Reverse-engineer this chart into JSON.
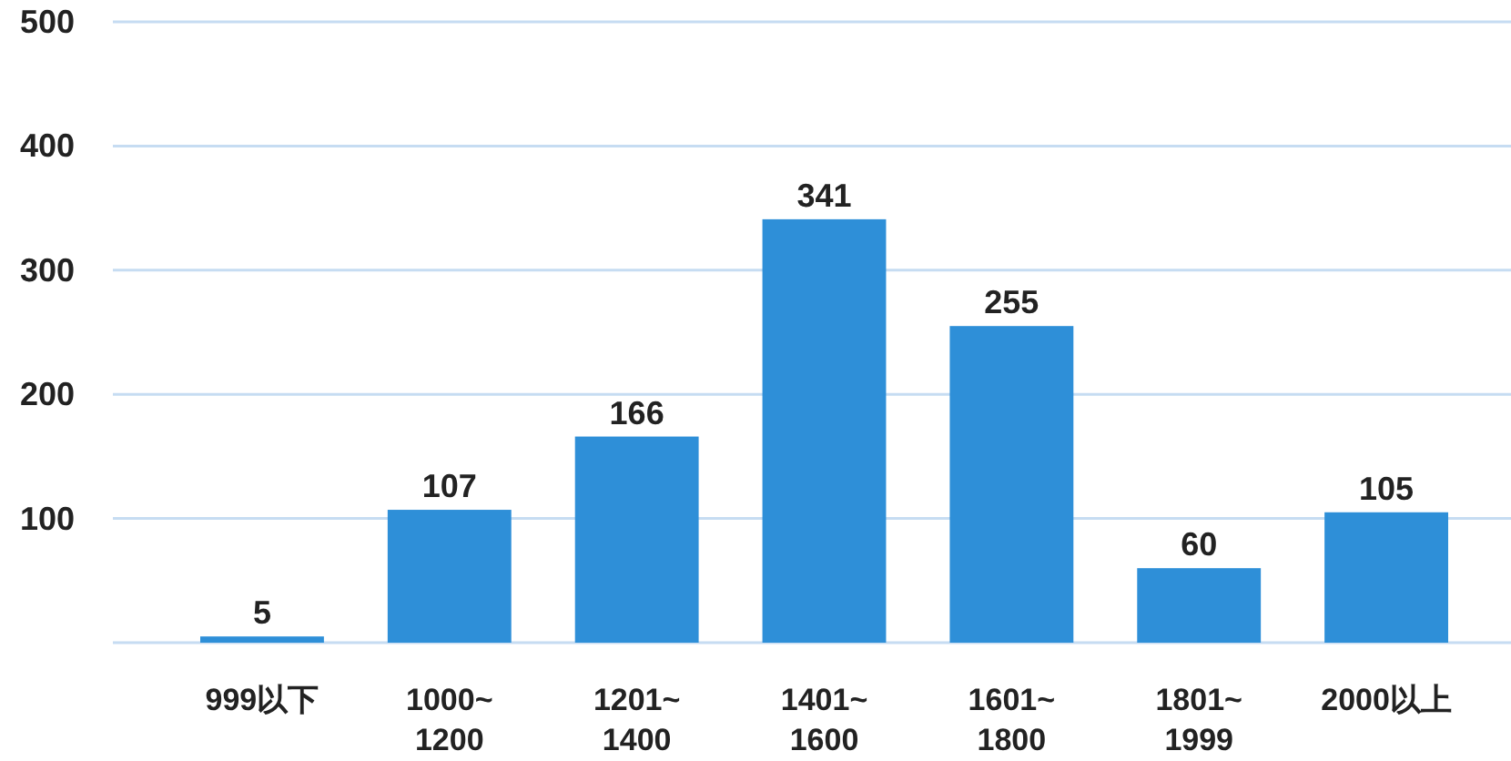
{
  "chart_data": {
    "type": "bar",
    "categories": [
      "999以下",
      "1000~\n1200",
      "1201~\n1400",
      "1401~\n1600",
      "1601~\n1800",
      "1801~\n1999",
      "2000以上"
    ],
    "values": [
      5,
      107,
      166,
      341,
      255,
      60,
      105
    ],
    "color": "#2e8fd8",
    "data_labels": true,
    "grid": "y",
    "ylim": [
      0,
      500
    ],
    "yticks": [
      {
        "value": 0,
        "label": null
      },
      100,
      200,
      300,
      400,
      500
    ]
  }
}
